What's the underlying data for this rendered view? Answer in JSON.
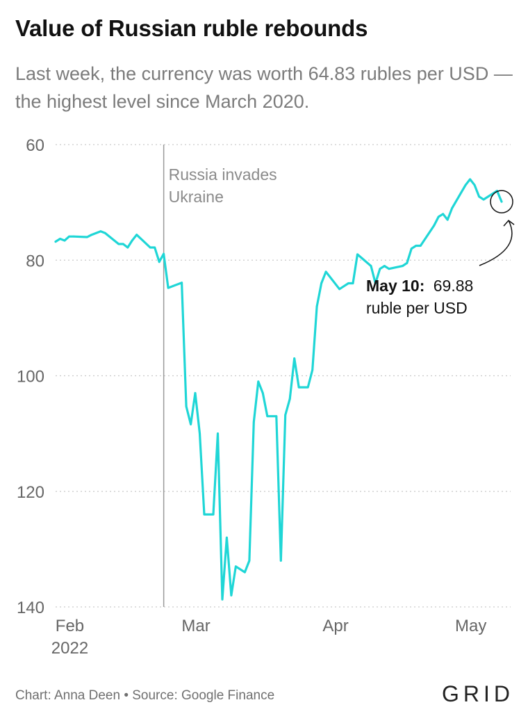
{
  "title": "Value of Russian ruble rebounds",
  "subtitle": "Last week, the currency was worth 64.83 rubles per USD — the highest level since March 2020.",
  "footer": {
    "source": "Chart: Anna Deen • Source: Google Finance",
    "logo": "GRID"
  },
  "chart_data": {
    "type": "line",
    "y_inverted": true,
    "ylim": [
      60,
      140
    ],
    "yticks": [
      60,
      80,
      100,
      120,
      140
    ],
    "xlim": [
      "2022-01-31",
      "2022-05-12"
    ],
    "xticks": [
      {
        "date": "2022-02-01",
        "label": "Feb",
        "sublabel": "2022"
      },
      {
        "date": "2022-03-01",
        "label": "Mar",
        "sublabel": ""
      },
      {
        "date": "2022-04-01",
        "label": "Apr",
        "sublabel": ""
      },
      {
        "date": "2022-05-01",
        "label": "May",
        "sublabel": ""
      }
    ],
    "grid": true,
    "line_color": "#1fd6d6",
    "series": [
      {
        "name": "",
        "x": [
          "2022-01-31",
          "2022-02-01",
          "2022-02-02",
          "2022-02-03",
          "2022-02-04",
          "2022-02-07",
          "2022-02-08",
          "2022-02-09",
          "2022-02-10",
          "2022-02-11",
          "2022-02-14",
          "2022-02-15",
          "2022-02-16",
          "2022-02-17",
          "2022-02-18",
          "2022-02-21",
          "2022-02-22",
          "2022-02-23",
          "2022-02-24",
          "2022-02-25",
          "2022-02-28",
          "2022-03-01",
          "2022-03-02",
          "2022-03-03",
          "2022-03-04",
          "2022-03-05",
          "2022-03-07",
          "2022-03-08",
          "2022-03-09",
          "2022-03-10",
          "2022-03-11",
          "2022-03-12",
          "2022-03-14",
          "2022-03-15",
          "2022-03-16",
          "2022-03-17",
          "2022-03-18",
          "2022-03-19",
          "2022-03-21",
          "2022-03-22",
          "2022-03-23",
          "2022-03-24",
          "2022-03-25",
          "2022-03-26",
          "2022-03-28",
          "2022-03-29",
          "2022-03-30",
          "2022-03-31",
          "2022-04-01",
          "2022-04-04",
          "2022-04-05",
          "2022-04-06",
          "2022-04-07",
          "2022-04-08",
          "2022-04-11",
          "2022-04-12",
          "2022-04-13",
          "2022-04-14",
          "2022-04-15",
          "2022-04-18",
          "2022-04-19",
          "2022-04-20",
          "2022-04-21",
          "2022-04-22",
          "2022-04-25",
          "2022-04-26",
          "2022-04-27",
          "2022-04-28",
          "2022-04-29",
          "2022-05-02",
          "2022-05-03",
          "2022-05-04",
          "2022-05-05",
          "2022-05-06",
          "2022-05-09",
          "2022-05-10"
        ],
        "y": [
          76.8,
          76.3,
          76.6,
          75.9,
          75.9,
          76.0,
          75.6,
          75.3,
          75.0,
          75.3,
          77.2,
          77.2,
          77.8,
          76.6,
          75.6,
          77.8,
          77.8,
          80.3,
          78.9,
          84.8,
          83.9,
          105.3,
          108.4,
          103.0,
          110.0,
          124.0,
          124.0,
          110.0,
          138.7,
          128.0,
          138.0,
          133.0,
          134.0,
          132.0,
          108.0,
          101.0,
          103.0,
          107.0,
          107.0,
          132.0,
          106.8,
          104.0,
          97.0,
          102.0,
          102.0,
          99.0,
          88.0,
          84.0,
          82.0,
          85.0,
          84.5,
          84.0,
          84.0,
          79.0,
          81.0,
          84.0,
          81.5,
          81.0,
          81.5,
          81.0,
          80.5,
          78.0,
          77.5,
          77.5,
          74.0,
          72.5,
          72.0,
          73.0,
          71.0,
          67.0,
          66.0,
          67.0,
          69.0,
          69.5,
          68.0,
          69.88
        ]
      }
    ],
    "annotations": [
      {
        "x": "2022-02-24",
        "text_line1": "Russia invades",
        "text_line2": "Ukraine"
      },
      {
        "x": "2022-05-10",
        "y": 69.88,
        "bold": "May 10:",
        "value": "69.88",
        "text_line2": "ruble per USD"
      }
    ]
  }
}
